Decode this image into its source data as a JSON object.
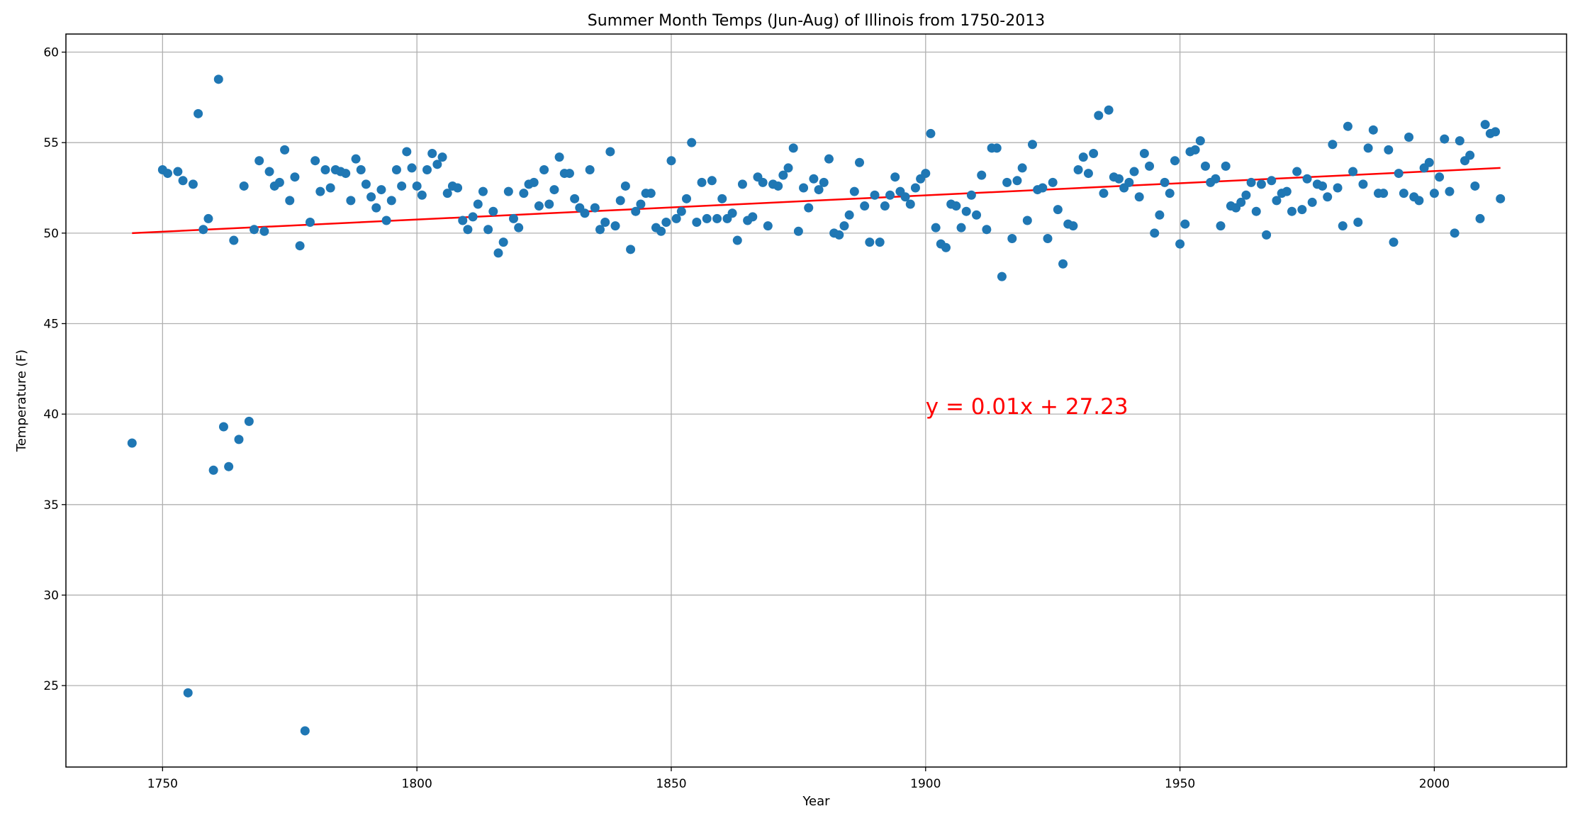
{
  "chart_data": {
    "type": "scatter",
    "title": "Summer Month Temps (Jun-Aug) of Illinois from 1750-2013",
    "xlabel": "Year",
    "ylabel": "Temperature (F)",
    "xlim": [
      1731,
      2026
    ],
    "ylim": [
      20.5,
      61
    ],
    "x_ticks": [
      1750,
      1800,
      1850,
      1900,
      1950,
      2000
    ],
    "y_ticks": [
      25,
      30,
      35,
      40,
      45,
      50,
      55,
      60
    ],
    "grid": true,
    "point_color": "#1f77b4",
    "line_color": "#ff0000",
    "annotation": {
      "text": "y = 0.01x + 27.23",
      "x": 1900,
      "y": 40
    },
    "regression": {
      "x": [
        1744,
        2013
      ],
      "y": [
        50.0,
        53.6
      ]
    },
    "series": [
      {
        "x": [
          1744,
          1750,
          1751,
          1753,
          1754,
          1755,
          1756,
          1757,
          1758,
          1759,
          1760,
          1761,
          1762,
          1763,
          1764,
          1765,
          1766,
          1767,
          1768,
          1769,
          1770,
          1771,
          1772,
          1773,
          1774,
          1775,
          1776,
          1777,
          1778,
          1779,
          1780,
          1781,
          1782,
          1783,
          1784,
          1785,
          1786,
          1787,
          1788,
          1789,
          1790,
          1791,
          1792,
          1793,
          1794,
          1795,
          1796,
          1797,
          1798,
          1799,
          1800,
          1801,
          1802,
          1803,
          1804,
          1805,
          1806,
          1807,
          1808,
          1809,
          1810,
          1811,
          1812,
          1813,
          1814,
          1815,
          1816,
          1817,
          1818,
          1819,
          1820,
          1821,
          1822,
          1823,
          1824,
          1825,
          1826,
          1827,
          1828,
          1829,
          1830,
          1831,
          1832,
          1833,
          1834,
          1835,
          1836,
          1837,
          1838,
          1839,
          1840,
          1841,
          1842,
          1843,
          1844,
          1845,
          1846,
          1847,
          1848,
          1849,
          1850,
          1851,
          1852,
          1853,
          1854,
          1855,
          1856,
          1857,
          1858,
          1859,
          1860,
          1861,
          1862,
          1863,
          1864,
          1865,
          1866,
          1867,
          1868,
          1869,
          1870,
          1871,
          1872,
          1873,
          1874,
          1875,
          1876,
          1877,
          1878,
          1879,
          1880,
          1881,
          1882,
          1883,
          1884,
          1885,
          1886,
          1887,
          1888,
          1889,
          1890,
          1891,
          1892,
          1893,
          1894,
          1895,
          1896,
          1897,
          1898,
          1899,
          1900,
          1901,
          1902,
          1903,
          1904,
          1905,
          1906,
          1907,
          1908,
          1909,
          1910,
          1911,
          1912,
          1913,
          1914,
          1915,
          1916,
          1917,
          1918,
          1919,
          1920,
          1921,
          1922,
          1923,
          1924,
          1925,
          1926,
          1927,
          1928,
          1929,
          1930,
          1931,
          1932,
          1933,
          1934,
          1935,
          1936,
          1937,
          1938,
          1939,
          1940,
          1941,
          1942,
          1943,
          1944,
          1945,
          1946,
          1947,
          1948,
          1949,
          1950,
          1951,
          1952,
          1953,
          1954,
          1955,
          1956,
          1957,
          1958,
          1959,
          1960,
          1961,
          1962,
          1963,
          1964,
          1965,
          1966,
          1967,
          1968,
          1969,
          1970,
          1971,
          1972,
          1973,
          1974,
          1975,
          1976,
          1977,
          1978,
          1979,
          1980,
          1981,
          1982,
          1983,
          1984,
          1985,
          1986,
          1987,
          1988,
          1989,
          1990,
          1991,
          1992,
          1993,
          1994,
          1995,
          1996,
          1997,
          1998,
          1999,
          2000,
          2001,
          2002,
          2003,
          2004,
          2005,
          2006,
          2007,
          2008,
          2009,
          2010,
          2011,
          2012,
          2013
        ],
        "y": [
          38.4,
          53.5,
          53.3,
          53.4,
          52.9,
          24.6,
          52.7,
          56.6,
          50.2,
          50.8,
          36.9,
          58.5,
          39.3,
          37.1,
          49.6,
          38.6,
          52.6,
          39.6,
          50.2,
          54.0,
          50.1,
          53.4,
          52.6,
          52.8,
          54.6,
          51.8,
          53.1,
          49.3,
          22.5,
          50.6,
          54.0,
          52.3,
          53.5,
          52.5,
          53.5,
          53.4,
          53.3,
          51.8,
          54.1,
          53.5,
          52.7,
          52.0,
          51.4,
          52.4,
          50.7,
          51.8,
          53.5,
          52.6,
          54.5,
          53.6,
          52.6,
          52.1,
          53.5,
          54.4,
          53.8,
          54.2,
          52.2,
          52.6,
          52.5,
          50.7,
          50.2,
          50.9,
          51.6,
          52.3,
          50.2,
          51.2,
          48.9,
          49.5,
          52.3,
          50.8,
          50.3,
          52.2,
          52.7,
          52.8,
          51.5,
          53.5,
          51.6,
          52.4,
          54.2,
          53.3,
          53.3,
          51.9,
          51.4,
          51.1,
          53.5,
          51.4,
          50.2,
          50.6,
          54.5,
          50.4,
          51.8,
          52.6,
          49.1,
          51.2,
          51.6,
          52.2,
          52.2,
          50.3,
          50.1,
          50.6,
          54.0,
          50.8,
          51.2,
          51.9,
          55.0,
          50.6,
          52.8,
          50.8,
          52.9,
          50.8,
          51.9,
          50.8,
          51.1,
          49.6,
          52.7,
          50.7,
          50.9,
          53.1,
          52.8,
          50.4,
          52.7,
          52.6,
          53.2,
          53.6,
          54.7,
          50.1,
          52.5,
          51.4,
          53.0,
          52.4,
          52.8,
          54.1,
          50.0,
          49.9,
          50.4,
          51.0,
          52.3,
          53.9,
          51.5,
          49.5,
          52.1,
          49.5,
          51.5,
          52.1,
          53.1,
          52.3,
          52.0,
          51.6,
          52.5,
          53.0,
          53.3,
          55.5,
          50.3,
          49.4,
          49.2,
          51.6,
          51.5,
          50.3,
          51.2,
          52.1,
          51.0,
          53.2,
          50.2,
          54.7,
          54.7,
          47.6,
          52.8,
          49.7,
          52.9,
          53.6,
          50.7,
          54.9,
          52.4,
          52.5,
          49.7,
          52.8,
          51.3,
          48.3,
          50.5,
          50.4,
          53.5,
          54.2,
          53.3,
          54.4,
          56.5,
          52.2,
          56.8,
          53.1,
          53.0,
          52.5,
          52.8,
          53.4,
          52.0,
          54.4,
          53.7,
          50.0,
          51.0,
          52.8,
          52.2,
          54.0,
          49.4,
          50.5,
          54.5,
          54.6,
          55.1,
          53.7,
          52.8,
          53.0,
          50.4,
          53.7,
          51.5,
          51.4,
          51.7,
          52.1,
          52.8,
          51.2,
          52.7,
          49.9,
          52.9,
          51.8,
          52.2,
          52.3,
          51.2,
          53.4,
          51.3,
          53.0,
          51.7,
          52.7,
          52.6,
          52.0,
          54.9,
          52.5,
          50.4,
          55.9,
          53.4,
          50.6,
          52.7,
          54.7,
          55.7,
          52.2,
          52.2,
          54.6,
          49.5,
          53.3,
          52.2,
          55.3,
          52.0,
          51.8,
          53.6,
          53.9,
          52.2,
          53.1,
          55.2,
          52.3,
          50.0,
          55.1,
          54.0,
          54.3,
          52.6,
          50.8,
          56.0,
          55.5,
          55.6,
          51.9
        ]
      }
    ]
  }
}
